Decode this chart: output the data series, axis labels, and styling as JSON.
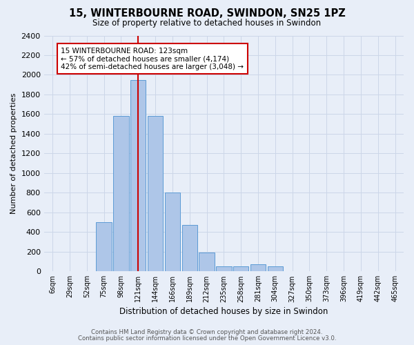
{
  "title": "15, WINTERBOURNE ROAD, SWINDON, SN25 1PZ",
  "subtitle": "Size of property relative to detached houses in Swindon",
  "xlabel": "Distribution of detached houses by size in Swindon",
  "ylabel": "Number of detached properties",
  "categories": [
    "6sqm",
    "29sqm",
    "52sqm",
    "75sqm",
    "98sqm",
    "121sqm",
    "144sqm",
    "166sqm",
    "189sqm",
    "212sqm",
    "235sqm",
    "258sqm",
    "281sqm",
    "304sqm",
    "327sqm",
    "350sqm",
    "373sqm",
    "396sqm",
    "419sqm",
    "442sqm",
    "465sqm"
  ],
  "bar_values": [
    0,
    0,
    0,
    500,
    1580,
    1950,
    1580,
    800,
    470,
    190,
    50,
    50,
    70,
    50,
    0,
    0,
    0,
    0,
    0,
    0,
    0
  ],
  "bar_color": "#aec6e8",
  "bar_edge_color": "#5b9bd5",
  "vline_x_index": 5,
  "vline_color": "#cc0000",
  "annotation_title": "15 WINTERBOURNE ROAD: 123sqm",
  "annotation_line1": "← 57% of detached houses are smaller (4,174)",
  "annotation_line2": "42% of semi-detached houses are larger (3,048) →",
  "annotation_box_color": "#ffffff",
  "annotation_box_edge": "#cc0000",
  "ylim": [
    0,
    2400
  ],
  "yticks": [
    0,
    200,
    400,
    600,
    800,
    1000,
    1200,
    1400,
    1600,
    1800,
    2000,
    2200,
    2400
  ],
  "grid_color": "#ccd6e8",
  "bg_color": "#e8eef8",
  "footer1": "Contains HM Land Registry data © Crown copyright and database right 2024.",
  "footer2": "Contains public sector information licensed under the Open Government Licence v3.0."
}
